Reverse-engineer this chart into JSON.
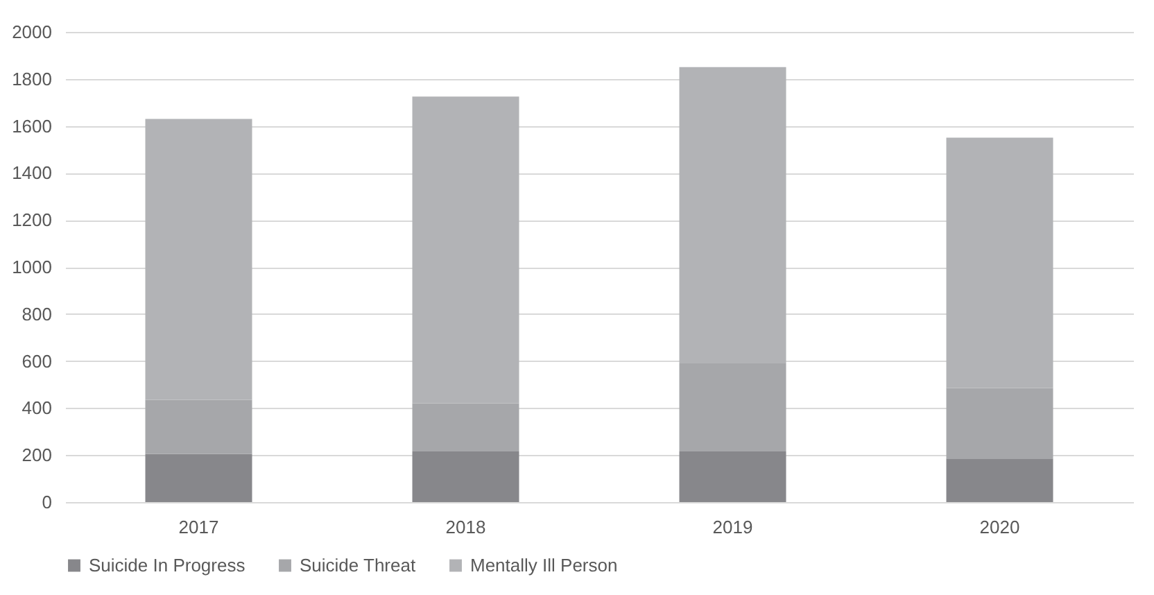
{
  "chart_data": {
    "type": "bar",
    "stacked": true,
    "categories": [
      "2017",
      "2018",
      "2019",
      "2020"
    ],
    "series": [
      {
        "name": "Suicide In Progress",
        "color": "#87878b",
        "values": [
          205,
          215,
          215,
          185
        ]
      },
      {
        "name": "Suicide Threat",
        "color": "#a6a7aa",
        "values": [
          230,
          205,
          375,
          300
        ]
      },
      {
        "name": "Mentally Ill Person",
        "color": "#b2b3b6",
        "values": [
          1195,
          1305,
          1260,
          1065
        ]
      }
    ],
    "ylim": [
      0,
      2000
    ],
    "yticks": [
      0,
      200,
      400,
      600,
      800,
      1000,
      1200,
      1400,
      1600,
      1800,
      2000
    ],
    "grid": "y",
    "legend": "bottom"
  }
}
